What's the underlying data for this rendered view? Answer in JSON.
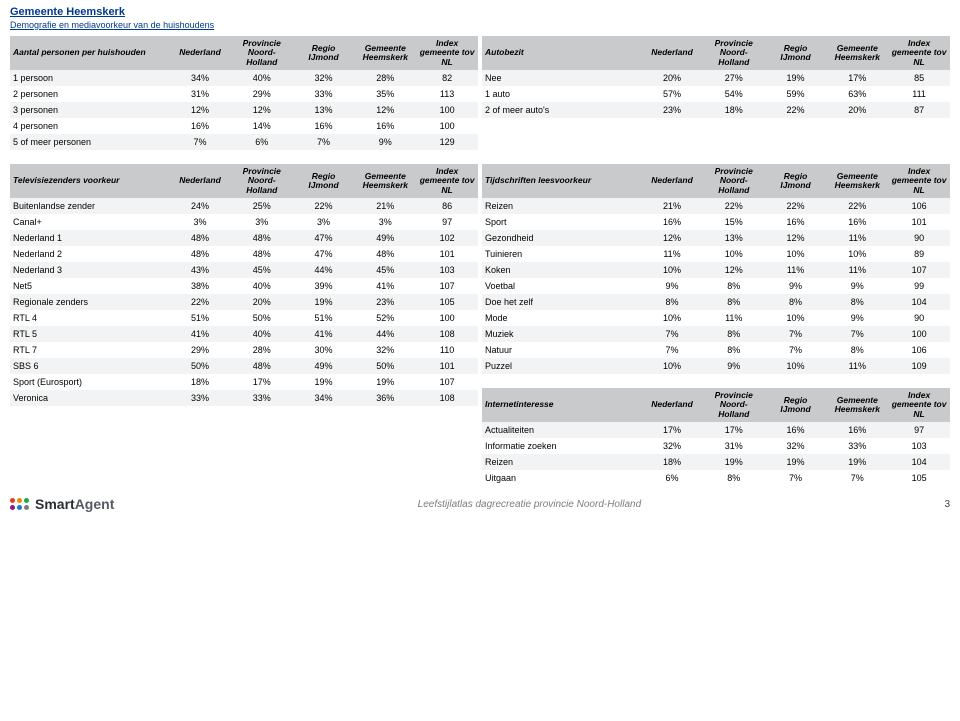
{
  "title": "Gemeente Heemskerk",
  "subtitle": "Demografie en mediavoorkeur van de huishoudens",
  "columns": [
    "Nederland",
    "Provincie Noord-Holland",
    "Regio IJmond",
    "Gemeente Heemskerk",
    "Index gemeente tov NL"
  ],
  "colors": {
    "header_bg": "#c9cacb",
    "row_even": "#f2f3f4",
    "row_odd": "#ffffff",
    "title": "#003a8c"
  },
  "tables": {
    "left_top": {
      "header": "Aantal personen per huishouden",
      "rows": [
        [
          "1 persoon",
          "34%",
          "40%",
          "32%",
          "28%",
          "82"
        ],
        [
          "2 personen",
          "31%",
          "29%",
          "33%",
          "35%",
          "113"
        ],
        [
          "3 personen",
          "12%",
          "12%",
          "13%",
          "12%",
          "100"
        ],
        [
          "4 personen",
          "16%",
          "14%",
          "16%",
          "16%",
          "100"
        ],
        [
          "5 of meer personen",
          "7%",
          "6%",
          "7%",
          "9%",
          "129"
        ]
      ]
    },
    "right_top": {
      "header": "Autobezit",
      "rows": [
        [
          "Nee",
          "20%",
          "27%",
          "19%",
          "17%",
          "85"
        ],
        [
          "1 auto",
          "57%",
          "54%",
          "59%",
          "63%",
          "111"
        ],
        [
          "2 of meer auto's",
          "23%",
          "18%",
          "22%",
          "20%",
          "87"
        ]
      ]
    },
    "left_mid": {
      "header": "Televisiezenders voorkeur",
      "rows": [
        [
          "Buitenlandse zender",
          "24%",
          "25%",
          "22%",
          "21%",
          "86"
        ],
        [
          "Canal+",
          "3%",
          "3%",
          "3%",
          "3%",
          "97"
        ],
        [
          "Nederland 1",
          "48%",
          "48%",
          "47%",
          "49%",
          "102"
        ],
        [
          "Nederland 2",
          "48%",
          "48%",
          "47%",
          "48%",
          "101"
        ],
        [
          "Nederland 3",
          "43%",
          "45%",
          "44%",
          "45%",
          "103"
        ],
        [
          "Net5",
          "38%",
          "40%",
          "39%",
          "41%",
          "107"
        ],
        [
          "Regionale zenders",
          "22%",
          "20%",
          "19%",
          "23%",
          "105"
        ],
        [
          "RTL 4",
          "51%",
          "50%",
          "51%",
          "52%",
          "100"
        ],
        [
          "RTL 5",
          "41%",
          "40%",
          "41%",
          "44%",
          "108"
        ],
        [
          "RTL 7",
          "29%",
          "28%",
          "30%",
          "32%",
          "110"
        ],
        [
          "SBS 6",
          "50%",
          "48%",
          "49%",
          "50%",
          "101"
        ],
        [
          "Sport (Eurosport)",
          "18%",
          "17%",
          "19%",
          "19%",
          "107"
        ],
        [
          "Veronica",
          "33%",
          "33%",
          "34%",
          "36%",
          "108"
        ]
      ]
    },
    "right_mid": {
      "header": "Tijdschriften leesvoorkeur",
      "rows": [
        [
          "Reizen",
          "21%",
          "22%",
          "22%",
          "22%",
          "106"
        ],
        [
          "Sport",
          "16%",
          "15%",
          "16%",
          "16%",
          "101"
        ],
        [
          "Gezondheid",
          "12%",
          "13%",
          "12%",
          "11%",
          "90"
        ],
        [
          "Tuinieren",
          "11%",
          "10%",
          "10%",
          "10%",
          "89"
        ],
        [
          "Koken",
          "10%",
          "12%",
          "11%",
          "11%",
          "107"
        ],
        [
          "Voetbal",
          "9%",
          "8%",
          "9%",
          "9%",
          "99"
        ],
        [
          "Doe het zelf",
          "8%",
          "8%",
          "8%",
          "8%",
          "104"
        ],
        [
          "Mode",
          "10%",
          "11%",
          "10%",
          "9%",
          "90"
        ],
        [
          "Muziek",
          "7%",
          "8%",
          "7%",
          "7%",
          "100"
        ],
        [
          "Natuur",
          "7%",
          "8%",
          "7%",
          "8%",
          "106"
        ],
        [
          "Puzzel",
          "10%",
          "9%",
          "10%",
          "11%",
          "109"
        ]
      ]
    },
    "right_bot": {
      "header": "Internetinteresse",
      "rows": [
        [
          "Actualiteiten",
          "17%",
          "17%",
          "16%",
          "16%",
          "97"
        ],
        [
          "Informatie zoeken",
          "32%",
          "31%",
          "32%",
          "33%",
          "103"
        ],
        [
          "Reizen",
          "18%",
          "19%",
          "19%",
          "19%",
          "104"
        ],
        [
          "Uitgaan",
          "6%",
          "8%",
          "7%",
          "7%",
          "105"
        ]
      ]
    }
  },
  "footer": {
    "center": "Leefstijlatlas dagrecreatie provincie Noord-Holland",
    "page": "3",
    "dot_colors": [
      "#e63b1e",
      "#f18a00",
      "#27a54b",
      "#8c1d7d",
      "#1f78c1",
      "#7a7e82"
    ]
  }
}
